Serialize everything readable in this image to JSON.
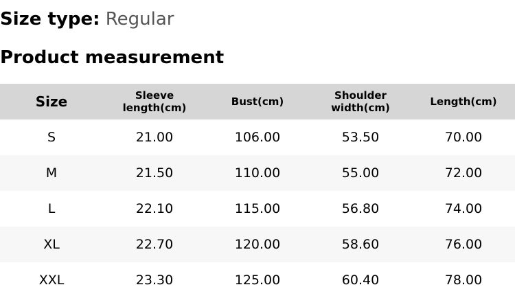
{
  "size_type": {
    "label": "Size type:",
    "value": "Regular"
  },
  "title": "Product measurement",
  "table": {
    "headers": [
      "Size",
      "Sleeve length(cm)",
      "Bust(cm)",
      "Shoulder width(cm)",
      "Length(cm)"
    ],
    "rows": [
      [
        "S",
        "21.00",
        "106.00",
        "53.50",
        "70.00"
      ],
      [
        "M",
        "21.50",
        "110.00",
        "55.00",
        "72.00"
      ],
      [
        "L",
        "22.10",
        "115.00",
        "56.80",
        "74.00"
      ],
      [
        "XL",
        "22.70",
        "120.00",
        "58.60",
        "76.00"
      ],
      [
        "XXL",
        "23.30",
        "125.00",
        "60.40",
        "78.00"
      ]
    ]
  }
}
